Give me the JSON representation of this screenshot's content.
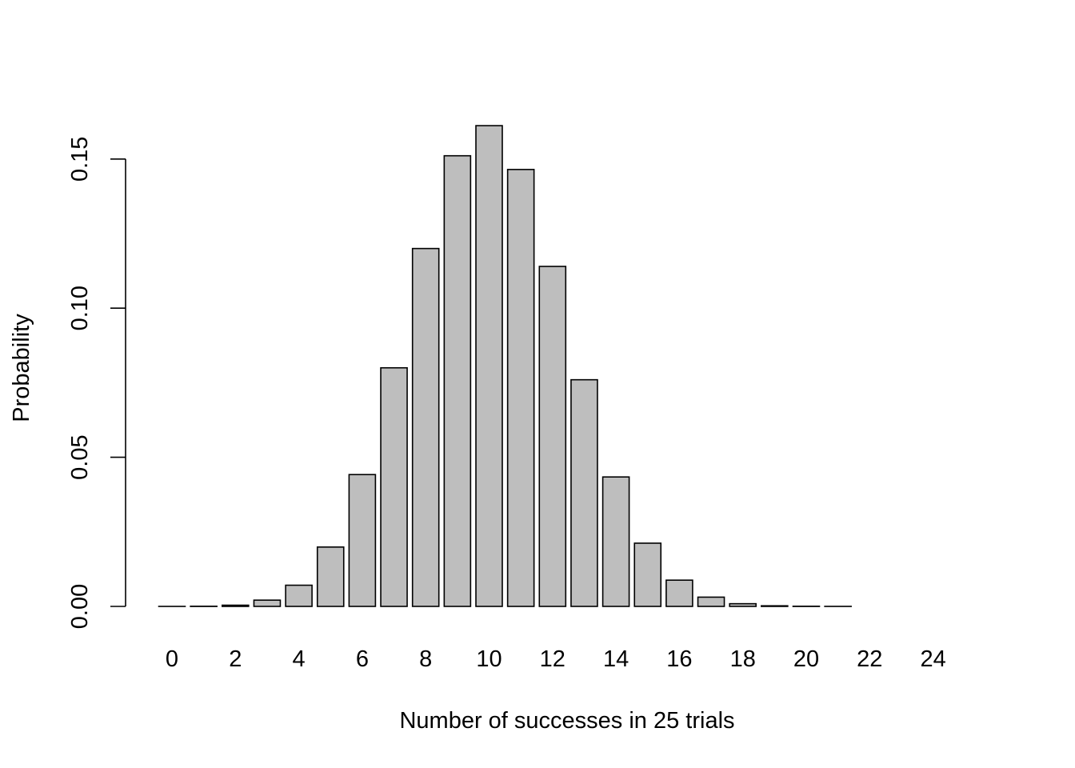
{
  "chart_data": {
    "type": "bar",
    "xlabel": "Number of successes in 25 trials",
    "ylabel": "Probability",
    "categories": [
      "0",
      "1",
      "2",
      "3",
      "4",
      "5",
      "6",
      "7",
      "8",
      "9",
      "10",
      "11",
      "12",
      "13",
      "14",
      "15",
      "16",
      "17",
      "18",
      "19",
      "20",
      "21",
      "22",
      "23",
      "24",
      "25"
    ],
    "x_tick_labels": [
      "0",
      "2",
      "4",
      "6",
      "8",
      "10",
      "12",
      "14",
      "16",
      "18",
      "20",
      "22",
      "24"
    ],
    "values": [
      3e-06,
      5e-05,
      0.0004,
      0.0021,
      0.0071,
      0.0199,
      0.0442,
      0.08,
      0.12,
      0.1511,
      0.1612,
      0.1465,
      0.114,
      0.076,
      0.0434,
      0.0212,
      0.0088,
      0.0031,
      0.0009,
      0.0002,
      5e-05,
      1e-05,
      1e-06,
      0.0,
      0.0,
      0.0
    ],
    "y_ticks": [
      0.0,
      0.05,
      0.1,
      0.15
    ],
    "y_tick_labels": [
      "0.00",
      "0.05",
      "0.10",
      "0.15"
    ],
    "ylim": [
      0,
      0.1612
    ],
    "grid": false,
    "legend": "none",
    "colors": {
      "bar_fill": "#bebebe",
      "bar_stroke": "#000000",
      "background": "#ffffff"
    }
  }
}
